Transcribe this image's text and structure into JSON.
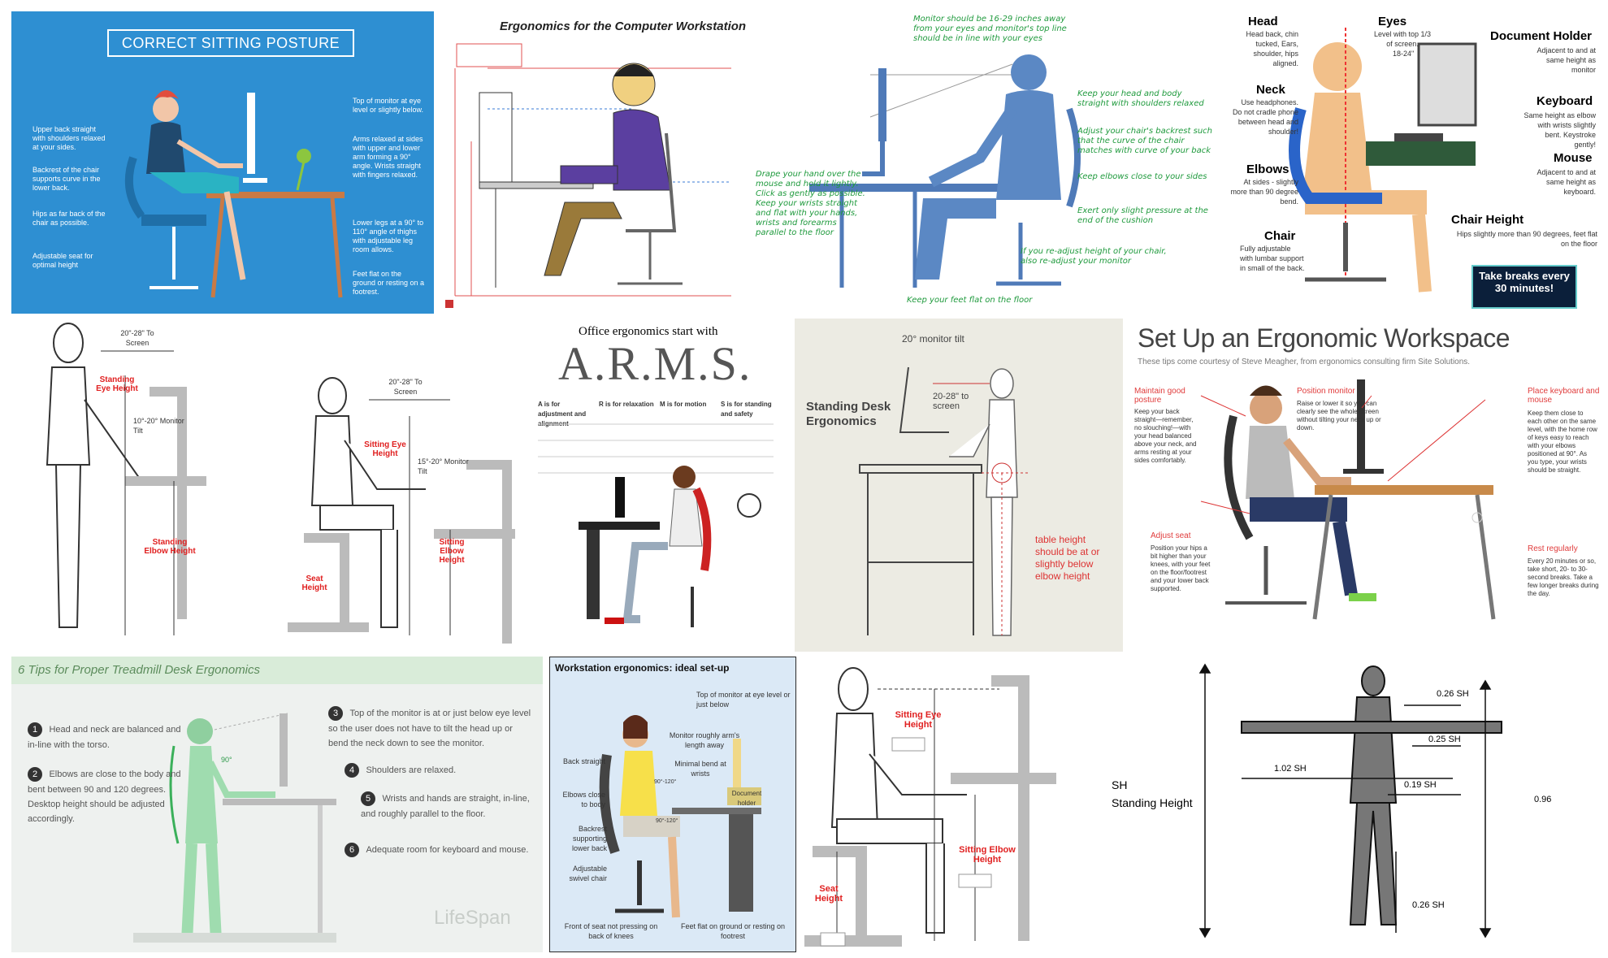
{
  "tiles": {
    "t1": {
      "title": "CORRECT SITTING POSTURE",
      "notes": [
        "Top of monitor at eye level or slightly below.",
        "Arms relaxed at sides with upper and lower arm forming a 90° angle. Wrists straight with fingers relaxed.",
        "Lower legs at a 90° to 110° angle of thighs with adjustable leg room allows.",
        "Feet flat on the ground or resting on a footrest."
      ],
      "left": [
        "Upper back straight with shoulders relaxed at your sides.",
        "Backrest of the chair supports curve in the lower back.",
        "Hips as far back of the chair as possible.",
        "Adjustable seat for optimal height"
      ]
    },
    "t2": {
      "title": "Ergonomics for the Computer Workstation"
    },
    "t3": {
      "top": "Monitor should be 16-29 inches away from your eyes and monitor's top line should be in line with your eyes",
      "right": [
        "Keep your head and body straight with shoulders relaxed",
        "Adjust your chair's backrest such that the curve of the chair matches with curve of your back",
        "Keep elbows close to your sides",
        "Exert only slight pressure at the end of the cushion",
        "If you re-adjust height of your chair, also re-adjust your monitor"
      ],
      "left": "Drape your hand over the mouse and hold it lightly. Click as gently as possible. Keep your wrists straight and flat with your hands, wrists and forearms parallel to the floor",
      "bottom": "Keep your feet flat on the floor"
    },
    "t4": {
      "items": [
        {
          "h": "Head",
          "d": "Head back, chin tucked, Ears, shoulder, hips aligned."
        },
        {
          "h": "Neck",
          "d": "Use headphones. Do not cradle phone between head and shoulder!"
        },
        {
          "h": "Elbows",
          "d": "At sides - slightly more than 90 degree bend."
        },
        {
          "h": "Chair",
          "d": "Fully adjustable with lumbar support in small of the back."
        }
      ],
      "eyes": "Eyes",
      "eyes_d": "Level with top 1/3 of screen.",
      "eyes_dist": "18-24\"",
      "doc": "Document Holder",
      "doc_d": "Adjacent to and at same height as monitor",
      "kb": "Keyboard",
      "kb_d": "Same height as elbow with wrists slightly bent. Keystroke gently!",
      "mouse": "Mouse",
      "mouse_d": "Adjacent to and at same height as keyboard.",
      "chair": "Chair Height",
      "chair_d": "Hips slightly more than 90 degrees, feet flat on the floor",
      "breaks": "Take breaks every 30 minutes!"
    },
    "t5": {
      "dist1": "20\"-28\" To Screen",
      "eye1": "Standing Eye Height",
      "tilt1": "10°-20° Monitor Tilt",
      "elbow1": "Standing Elbow Height",
      "dist2": "20\"-28\" To Screen",
      "eye2": "Sitting Eye Height",
      "tilt2": "15°-20° Monitor Tilt",
      "elbow2": "Sitting Elbow Height",
      "seat2": "Seat Height"
    },
    "t6": {
      "pre": "Office ergonomics start with",
      "big": "A.R.M.S.",
      "cols": [
        "A is for adjustment and alignment",
        "R is for relaxation",
        "M is for motion",
        "S is for standing and safety"
      ]
    },
    "t7": {
      "tilt": "20° monitor tilt",
      "title": "Standing Desk Ergonomics",
      "dist": "20-28\" to screen",
      "table": "table height should be at or slightly below elbow height"
    },
    "t8": {
      "title": "Set Up an Ergonomic Workspace",
      "sub": "These tips come courtesy of Steve Meagher, from ergonomics consulting firm Site Solutions.",
      "posture_h": "Maintain good posture",
      "posture": "Keep your back straight—remember, no slouching!—with your head balanced above your neck, and arms resting at your sides comfortably.",
      "monitor_h": "Position monitor",
      "monitor": "Raise or lower it so you can clearly see the whole screen without tilting your neck up or down.",
      "kb_h": "Place keyboard and mouse",
      "kb": "Keep them close to each other on the same level, with the home row of keys easy to reach with your elbows positioned at 90°. As you type, your wrists should be straight.",
      "seat_h": "Adjust seat",
      "seat": "Position your hips a bit higher than your knees, with your feet on the floor/footrest and your lower back supported.",
      "rest_h": "Rest regularly",
      "rest": "Every 20 minutes or so, take short, 20- to 30-second breaks. Take a few longer breaks during the day."
    },
    "t9": {
      "title": "6 Tips for Proper Treadmill Desk Ergonomics",
      "tips": [
        {
          "n": "1",
          "t": "Head and neck are balanced and in-line with the torso."
        },
        {
          "n": "2",
          "t": "Elbows are close to the body and bent between 90 and 120 degrees. Desktop height should be adjusted accordingly."
        },
        {
          "n": "3",
          "t": "Top of the monitor is at or just below eye level so the user does not have to tilt the head up or bend the neck down to see the monitor."
        },
        {
          "n": "4",
          "t": "Shoulders are relaxed."
        },
        {
          "n": "5",
          "t": "Wrists and hands are straight, in-line, and roughly parallel to the floor."
        },
        {
          "n": "6",
          "t": "Adequate room for keyboard and mouse."
        }
      ],
      "angle": "90°",
      "brand": "LifeSpan"
    },
    "t10": {
      "title": "Workstation ergonomics: ideal set-up",
      "labels": [
        "Top of monitor at eye level or just below",
        "Monitor roughly arm's length away",
        "Minimal bend at wrists",
        "Document holder",
        "Back straight",
        "Elbows close to body",
        "Backrest supporting lower back",
        "Adjustable swivel chair",
        "Front of seat not pressing on back of knees",
        "Feet flat on ground or resting on footrest"
      ],
      "a1": "90°-120°",
      "a2": "90°-120°"
    },
    "t11": {
      "eye": "Sitting Eye Height",
      "elbow": "Sitting Elbow Height",
      "seat": "Seat Height"
    },
    "t12": {
      "sh": "SH",
      "sh_label": "Standing Height",
      "d1": "0.26 SH",
      "d2": "0.25 SH",
      "d3": "1.02 SH",
      "d4": "0.19 SH",
      "d5": "0.96",
      "d6": "0.26 SH"
    }
  }
}
